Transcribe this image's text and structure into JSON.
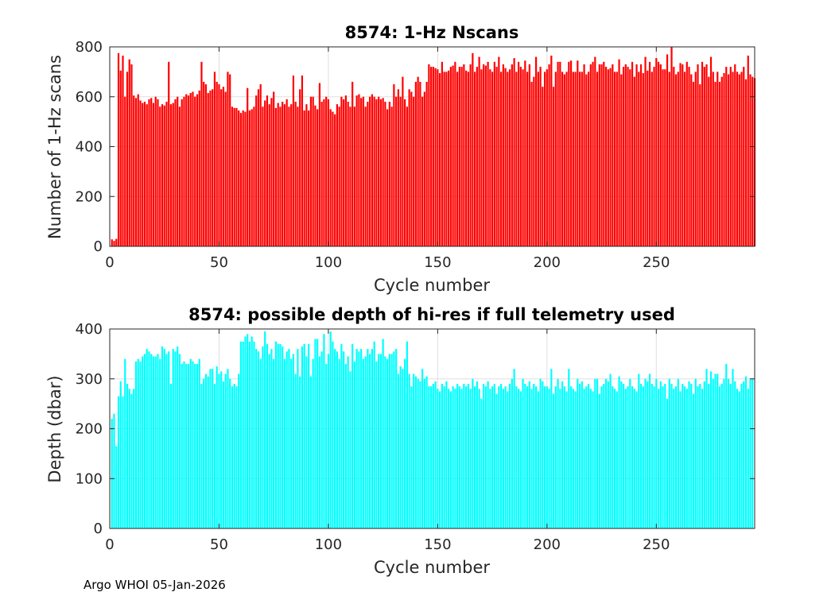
{
  "footer": "Argo WHOI 05-Jan-2026",
  "chart_data": [
    {
      "type": "bar",
      "title": "8574: 1-Hz Nscans",
      "xlabel": "Cycle number",
      "ylabel": "Number of 1-Hz scans",
      "xlim": [
        0,
        295
      ],
      "ylim": [
        0,
        800
      ],
      "xticks": [
        0,
        50,
        100,
        150,
        200,
        250
      ],
      "yticks": [
        0,
        200,
        400,
        600,
        800
      ],
      "grid": true,
      "color": "#ff0000",
      "x_start": 1,
      "values": [
        28,
        22,
        30,
        775,
        705,
        765,
        600,
        700,
        750,
        730,
        605,
        595,
        610,
        585,
        575,
        580,
        570,
        590,
        595,
        575,
        600,
        590,
        560,
        570,
        565,
        580,
        740,
        570,
        575,
        590,
        600,
        560,
        590,
        600,
        610,
        605,
        615,
        620,
        600,
        610,
        625,
        740,
        660,
        650,
        615,
        625,
        630,
        700,
        660,
        650,
        630,
        640,
        620,
        700,
        690,
        560,
        555,
        555,
        545,
        535,
        545,
        540,
        635,
        545,
        550,
        560,
        605,
        630,
        650,
        560,
        585,
        605,
        570,
        595,
        620,
        555,
        575,
        560,
        580,
        570,
        590,
        560,
        570,
        685,
        580,
        560,
        630,
        685,
        545,
        570,
        545,
        600,
        600,
        565,
        550,
        655,
        580,
        590,
        600,
        590,
        550,
        540,
        530,
        570,
        560,
        600,
        590,
        605,
        580,
        560,
        660,
        560,
        605,
        610,
        595,
        600,
        560,
        580,
        600,
        610,
        600,
        590,
        600,
        590,
        595,
        580,
        550,
        580,
        560,
        650,
        600,
        630,
        600,
        680,
        590,
        560,
        630,
        620,
        600,
        660,
        680,
        660,
        600,
        620,
        660,
        730,
        720,
        720,
        715,
        710,
        695,
        740,
        700,
        700,
        705,
        720,
        725,
        740,
        700,
        720,
        720,
        730,
        705,
        700,
        730,
        775,
        700,
        720,
        760,
        710,
        730,
        725,
        740,
        710,
        700,
        740,
        720,
        760,
        700,
        730,
        715,
        700,
        710,
        730,
        755,
        700,
        740,
        720,
        710,
        745,
        700,
        730,
        660,
        680,
        760,
        700,
        720,
        640,
        700,
        710,
        730,
        765,
        640,
        700,
        740,
        740,
        700,
        690,
        700,
        740,
        745,
        700,
        700,
        745,
        700,
        700,
        730,
        690,
        700,
        730,
        740,
        760,
        700,
        730,
        730,
        740,
        720,
        710,
        715,
        730,
        700,
        700,
        750,
        690,
        720,
        730,
        720,
        710,
        740,
        680,
        730,
        700,
        730,
        695,
        760,
        705,
        740,
        700,
        720,
        755,
        740,
        730,
        710,
        710,
        770,
        700,
        800,
        720,
        690,
        700,
        735,
        730,
        700,
        740,
        720,
        690,
        660,
        700,
        730,
        650,
        740,
        720,
        730,
        680,
        760,
        700,
        660,
        700,
        660,
        680,
        695,
        720,
        690,
        720,
        700,
        730,
        700,
        690,
        700,
        720,
        670,
        765,
        690,
        680,
        675
      ]
    },
    {
      "type": "bar",
      "title": "8574: possible depth of hi-res if full telemetry used",
      "xlabel": "Cycle number",
      "ylabel": "Depth (dbar)",
      "xlim": [
        0,
        295
      ],
      "ylim": [
        0,
        400
      ],
      "xticks": [
        0,
        50,
        100,
        150,
        200,
        250
      ],
      "yticks": [
        0,
        100,
        200,
        300,
        400
      ],
      "grid": true,
      "color": "#00ffff",
      "x_start": 1,
      "values": [
        220,
        230,
        165,
        265,
        295,
        265,
        340,
        290,
        280,
        270,
        280,
        335,
        340,
        335,
        345,
        350,
        360,
        355,
        350,
        345,
        345,
        350,
        340,
        365,
        360,
        350,
        355,
        290,
        360,
        355,
        365,
        350,
        330,
        335,
        330,
        330,
        340,
        335,
        330,
        330,
        340,
        290,
        300,
        310,
        305,
        320,
        320,
        290,
        325,
        310,
        315,
        295,
        310,
        320,
        300,
        285,
        290,
        285,
        310,
        375,
        375,
        385,
        390,
        375,
        385,
        375,
        360,
        355,
        340,
        365,
        395,
        370,
        350,
        360,
        340,
        375,
        370,
        370,
        365,
        340,
        355,
        360,
        340,
        350,
        310,
        360,
        305,
        365,
        370,
        345,
        370,
        305,
        340,
        380,
        380,
        345,
        355,
        390,
        330,
        350,
        395,
        375,
        360,
        355,
        340,
        370,
        355,
        330,
        345,
        315,
        370,
        335,
        360,
        355,
        360,
        340,
        345,
        360,
        350,
        360,
        375,
        335,
        350,
        350,
        380,
        345,
        340,
        350,
        350,
        355,
        360,
        310,
        325,
        320,
        340,
        375,
        310,
        285,
        310,
        305,
        300,
        295,
        320,
        300,
        305,
        285,
        285,
        290,
        295,
        280,
        275,
        290,
        285,
        295,
        280,
        275,
        285,
        280,
        290,
        285,
        280,
        290,
        285,
        290,
        280,
        300,
        285,
        295,
        280,
        260,
        290,
        285,
        295,
        280,
        285,
        290,
        270,
        285,
        290,
        280,
        285,
        275,
        290,
        300,
        320,
        285,
        280,
        275,
        300,
        290,
        285,
        295,
        280,
        290,
        285,
        275,
        300,
        295,
        285,
        285,
        280,
        320,
        270,
        285,
        300,
        280,
        295,
        285,
        275,
        320,
        285,
        280,
        275,
        300,
        290,
        295,
        280,
        285,
        290,
        280,
        275,
        300,
        300,
        270,
        285,
        290,
        300,
        295,
        310,
        285,
        280,
        275,
        305,
        295,
        290,
        280,
        285,
        300,
        285,
        280,
        275,
        310,
        290,
        285,
        300,
        295,
        310,
        290,
        285,
        300,
        280,
        295,
        285,
        290,
        260,
        300,
        290,
        280,
        285,
        300,
        275,
        290,
        285,
        280,
        295,
        290,
        270,
        300,
        285,
        290,
        280,
        295,
        320,
        290,
        315,
        300,
        310,
        310,
        285,
        290,
        300,
        330,
        300,
        290,
        320,
        295,
        280,
        275,
        290,
        295,
        305,
        280,
        300,
        300
      ]
    }
  ]
}
